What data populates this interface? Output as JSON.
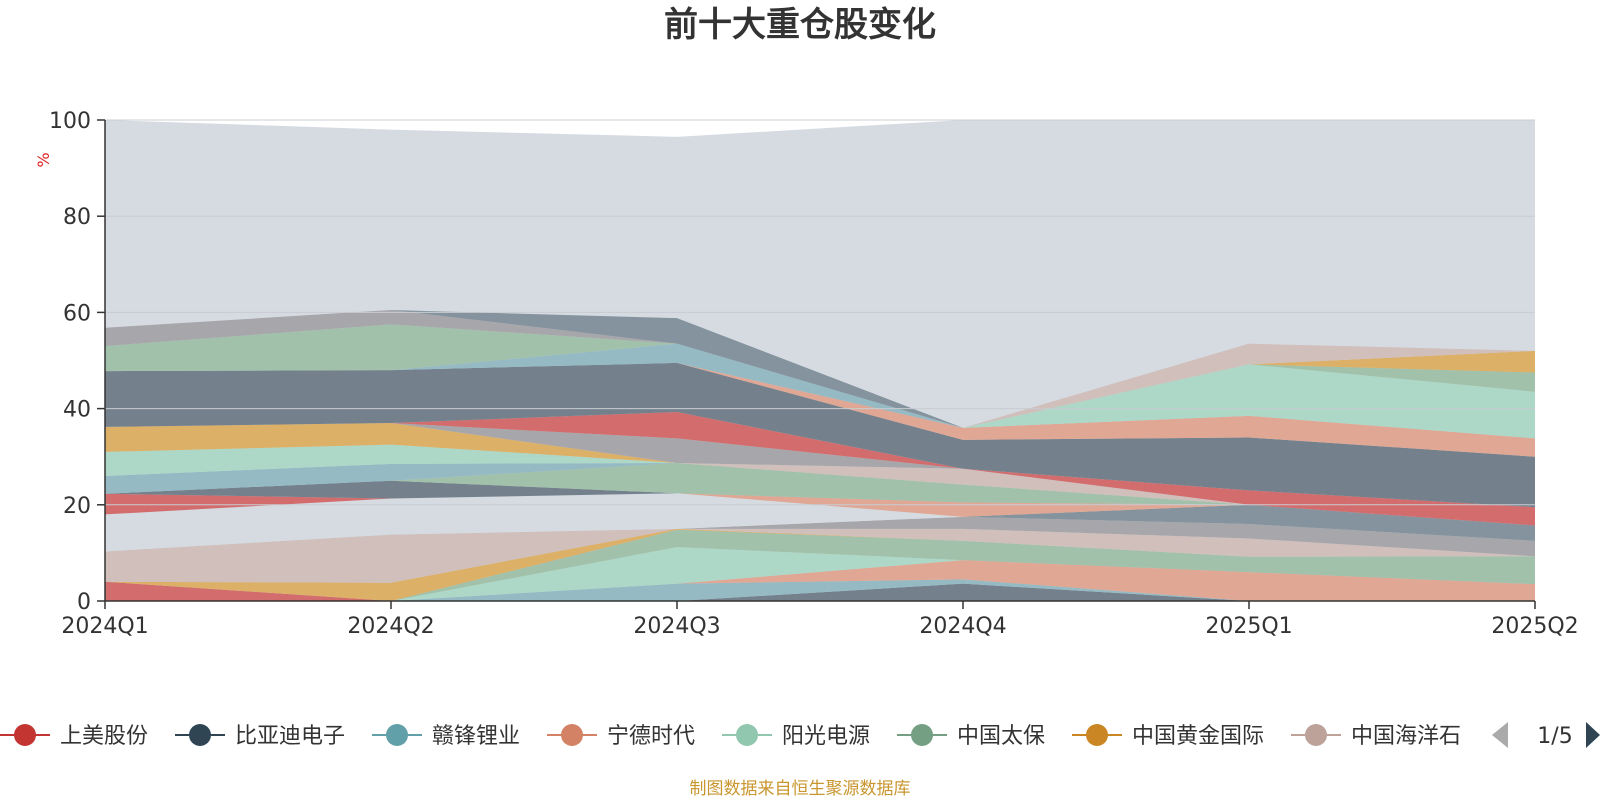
{
  "chart_data": {
    "type": "area",
    "title": "前十大重仓股变化",
    "ylabel": "%",
    "ylim": [
      0,
      100
    ],
    "yticks": [
      0,
      20,
      40,
      60,
      80,
      100
    ],
    "categories": [
      "2024Q1",
      "2024Q2",
      "2024Q3",
      "2024Q4",
      "2025Q1",
      "2025Q2"
    ],
    "grid": true,
    "background_area": {
      "name": "",
      "color": "#d6dbe2",
      "values": [
        100,
        98.0,
        96.5,
        100,
        100,
        100
      ]
    },
    "layers": [
      {
        "name": "",
        "color": "#d36363",
        "bottom": [
          0,
          0,
          0,
          0,
          0,
          0
        ],
        "top": [
          4.0,
          0,
          0,
          0,
          0,
          0
        ]
      },
      {
        "name": "",
        "color": "#6b7a86",
        "bottom": [
          0,
          0,
          0,
          0,
          0,
          0
        ],
        "top": [
          0,
          0,
          0,
          3.6,
          0,
          0
        ]
      },
      {
        "name": "",
        "color": "#8fb7c0",
        "bottom": [
          0,
          0,
          0,
          3.6,
          0,
          0
        ],
        "top": [
          0,
          0,
          3.6,
          4.5,
          0,
          0
        ]
      },
      {
        "name": "",
        "color": "#e0a38d",
        "bottom": [
          0,
          0,
          3.6,
          4.5,
          0,
          0
        ],
        "top": [
          0,
          0,
          3.6,
          8.5,
          6.0,
          3.5
        ]
      },
      {
        "name": "",
        "color": "#a9d8c4",
        "bottom": [
          0,
          0,
          3.6,
          8.5,
          6.0,
          3.5
        ],
        "top": [
          0,
          0,
          11.2,
          8.5,
          6.0,
          3.5
        ]
      },
      {
        "name": "",
        "color": "#9cbfa5",
        "bottom": [
          0,
          0,
          11.2,
          8.5,
          6.0,
          3.5
        ],
        "top": [
          0,
          0,
          14.8,
          12.5,
          9.2,
          9.3
        ]
      },
      {
        "name": "",
        "color": "#dcac5c",
        "bottom": [
          4.0,
          0,
          14.8,
          12.5,
          9.2,
          9.3
        ],
        "top": [
          4.0,
          3.8,
          15.0,
          12.5,
          9.2,
          9.3
        ]
      },
      {
        "name": "",
        "color": "#cfbdb7",
        "bottom": [
          4.0,
          3.8,
          15.0,
          12.5,
          9.2,
          9.3
        ],
        "top": [
          10.3,
          13.8,
          15.0,
          15.0,
          13.0,
          9.3
        ]
      },
      {
        "name": "",
        "color": "#a3a2a6",
        "bottom": [
          10.3,
          13.8,
          15.0,
          15.0,
          13.0,
          9.3
        ],
        "top": [
          10.3,
          13.8,
          15.0,
          17.5,
          16.0,
          12.5
        ]
      },
      {
        "name": "",
        "color": "#7d8d97",
        "bottom": [
          10.3,
          13.8,
          15.0,
          17.5,
          16.0,
          12.5
        ],
        "top": [
          10.3,
          13.8,
          15.0,
          17.5,
          20.0,
          15.7
        ]
      },
      {
        "name": "",
        "color": "#d6dbe2",
        "bottom": [
          10.3,
          13.8,
          15.0,
          17.5,
          20.0,
          15.7
        ],
        "top": [
          18.0,
          21.3,
          22.4,
          17.5,
          20.0,
          15.7
        ]
      },
      {
        "name": "",
        "color": "#d36363",
        "bottom": [
          18.0,
          21.3,
          22.4,
          17.5,
          20.0,
          15.7
        ],
        "top": [
          22.3,
          21.3,
          22.4,
          17.5,
          20.0,
          15.7
        ]
      },
      {
        "name": "",
        "color": "#6b7a86",
        "bottom": [
          22.3,
          21.3,
          22.4,
          17.5,
          20.0,
          15.7
        ],
        "top": [
          22.3,
          25.0,
          22.4,
          17.5,
          20.0,
          15.7
        ]
      },
      {
        "name": "",
        "color": "#e0a38d",
        "bottom": [
          22.3,
          25.0,
          22.4,
          17.5,
          20.0,
          15.7
        ],
        "top": [
          22.3,
          25.0,
          22.4,
          20.5,
          20.0,
          15.7
        ]
      },
      {
        "name": "",
        "color": "#9cbfa5",
        "bottom": [
          22.3,
          25.0,
          22.4,
          20.5,
          20.0,
          15.7
        ],
        "top": [
          22.3,
          25.0,
          28.7,
          24.2,
          20.0,
          15.7
        ]
      },
      {
        "name": "",
        "color": "#cfbdb7",
        "bottom": [
          22.3,
          25.0,
          28.7,
          24.2,
          20.0,
          15.7
        ],
        "top": [
          22.3,
          25.0,
          28.7,
          27.5,
          20.0,
          15.7
        ]
      },
      {
        "name": "",
        "color": "#8fb7c0",
        "bottom": [
          22.3,
          25.0,
          28.7,
          27.5,
          20.0,
          15.7
        ],
        "top": [
          26.0,
          28.5,
          28.7,
          27.5,
          20.0,
          15.7
        ]
      },
      {
        "name": "",
        "color": "#a9d8c4",
        "bottom": [
          26.0,
          28.5,
          28.7,
          27.5,
          20.0,
          15.7
        ],
        "top": [
          31.0,
          32.5,
          28.7,
          27.5,
          20.0,
          15.7
        ]
      },
      {
        "name": "",
        "color": "#dcac5c",
        "bottom": [
          31.0,
          32.5,
          28.7,
          27.5,
          20.0,
          15.7
        ],
        "top": [
          36.2,
          37.0,
          28.7,
          27.5,
          20.0,
          15.7
        ]
      },
      {
        "name": "",
        "color": "#a3a2a6",
        "bottom": [
          36.2,
          37.0,
          28.7,
          27.5,
          20.0,
          15.7
        ],
        "top": [
          36.2,
          37.0,
          33.8,
          27.5,
          20.0,
          15.7
        ]
      },
      {
        "name": "",
        "color": "#d36363",
        "bottom": [
          36.2,
          37.0,
          33.8,
          27.5,
          20.0,
          15.7
        ],
        "top": [
          36.2,
          37.0,
          39.3,
          27.5,
          23.0,
          19.5
        ]
      },
      {
        "name": "",
        "color": "#6b7a86",
        "bottom": [
          36.2,
          37.0,
          39.3,
          27.5,
          23.0,
          19.5
        ],
        "top": [
          47.8,
          48.0,
          49.5,
          33.5,
          34.0,
          30.0
        ]
      },
      {
        "name": "",
        "color": "#e0a38d",
        "bottom": [
          47.8,
          48.0,
          49.5,
          33.5,
          34.0,
          30.0
        ],
        "top": [
          47.8,
          48.0,
          49.5,
          36.0,
          38.5,
          33.8
        ]
      },
      {
        "name": "",
        "color": "#a9d8c4",
        "bottom": [
          47.8,
          48.0,
          49.5,
          36.0,
          38.5,
          33.8
        ],
        "top": [
          47.8,
          48.0,
          49.5,
          36.0,
          49.2,
          43.5
        ]
      },
      {
        "name": "",
        "color": "#9cbfa5",
        "bottom": [
          47.8,
          48.0,
          49.5,
          36.0,
          49.2,
          43.5
        ],
        "top": [
          47.8,
          48.0,
          49.5,
          36.0,
          49.2,
          47.5
        ]
      },
      {
        "name": "",
        "color": "#dcac5c",
        "bottom": [
          47.8,
          48.0,
          49.5,
          36.0,
          49.2,
          47.5
        ],
        "top": [
          47.8,
          48.0,
          49.5,
          36.0,
          49.2,
          52.0
        ]
      },
      {
        "name": "",
        "color": "#cfbdb7",
        "bottom": [
          47.8,
          48.0,
          49.5,
          36.0,
          49.2,
          52.0
        ],
        "top": [
          47.8,
          48.0,
          49.5,
          36.0,
          53.5,
          52.0
        ]
      },
      {
        "name": "",
        "color": "#8fb7c0",
        "bottom": [
          47.8,
          48.0,
          49.5,
          36.0,
          53.5,
          52.0
        ],
        "top": [
          47.8,
          48.0,
          53.5,
          36.0,
          53.5,
          52.0
        ]
      },
      {
        "name": "",
        "color": "#9cbfa5",
        "bottom": [
          47.8,
          48.0,
          53.5,
          36.0,
          53.5,
          52.0
        ],
        "top": [
          53.0,
          57.5,
          53.5,
          36.0,
          53.5,
          52.0
        ]
      },
      {
        "name": "",
        "color": "#a3a2a6",
        "bottom": [
          53.0,
          57.5,
          53.5,
          36.0,
          53.5,
          52.0
        ],
        "top": [
          56.8,
          60.5,
          53.5,
          36.0,
          53.5,
          52.0
        ]
      },
      {
        "name": "",
        "color": "#7d8d97",
        "bottom": [
          56.8,
          60.5,
          53.5,
          36.0,
          53.5,
          52.0
        ],
        "top": [
          56.8,
          60.5,
          58.8,
          36.0,
          53.5,
          52.0
        ]
      }
    ],
    "legend": {
      "placement": "bottom",
      "items": [
        {
          "name": "上美股份",
          "color": "#c23531"
        },
        {
          "name": "比亚迪电子",
          "color": "#2f4554"
        },
        {
          "name": "赣锋锂业",
          "color": "#61a0a8"
        },
        {
          "name": "宁德时代",
          "color": "#d48265"
        },
        {
          "name": "阳光电源",
          "color": "#91c7ae"
        },
        {
          "name": "中国太保",
          "color": "#749f83"
        },
        {
          "name": "中国黄金国际",
          "color": "#ca8622"
        },
        {
          "name": "中国海洋石",
          "color": "#bda29a"
        }
      ],
      "pager": "1/5",
      "prev_disabled_color": "#aaaaaa",
      "next_color": "#2f4554"
    }
  },
  "source_note": "制图数据来自恒生聚源数据库",
  "colors": {
    "axis": "#333333",
    "grid": "#c8ccd2",
    "unit": "#dd2222",
    "source": "#c9962f"
  }
}
